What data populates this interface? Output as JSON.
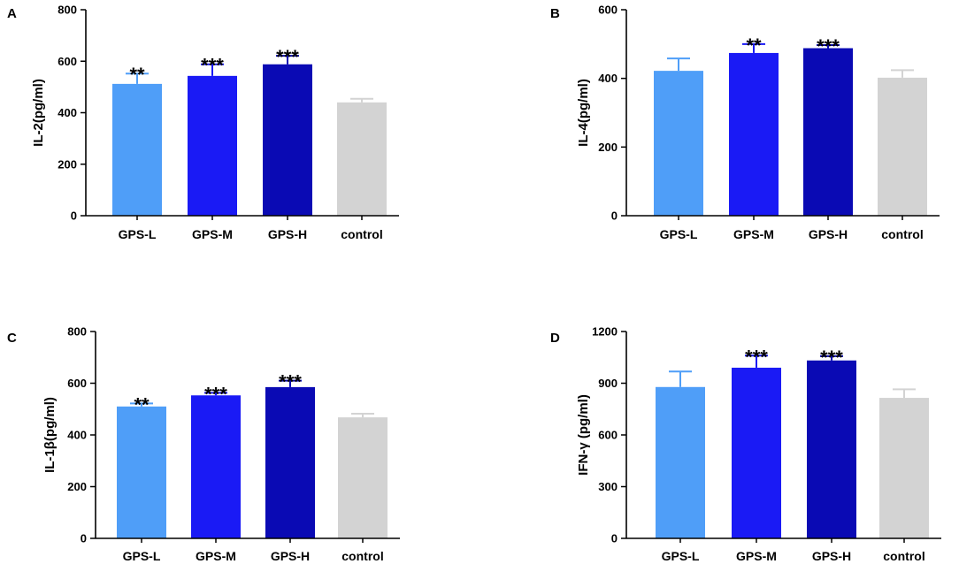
{
  "chart_data": [
    {
      "type": "bar",
      "panel": "A",
      "ylabel": "IL-2(pg/ml)",
      "ylim": [
        0,
        800
      ],
      "yticks": [
        0,
        200,
        400,
        600,
        800
      ],
      "categories": [
        "GPS-L",
        "GPS-M",
        "GPS-H",
        "control"
      ],
      "values": [
        512,
        543,
        588,
        440
      ],
      "errors": [
        40,
        45,
        33,
        14
      ],
      "significance": [
        "**",
        "***",
        "***",
        ""
      ]
    },
    {
      "type": "bar",
      "panel": "B",
      "ylabel": "IL-4(pg/ml)",
      "ylim": [
        0,
        600
      ],
      "yticks": [
        0,
        200,
        400,
        600
      ],
      "categories": [
        "GPS-L",
        "GPS-M",
        "GPS-H",
        "control"
      ],
      "values": [
        422,
        474,
        488,
        402
      ],
      "errors": [
        36,
        26,
        9,
        22
      ],
      "significance": [
        "",
        "**",
        "***",
        ""
      ]
    },
    {
      "type": "bar",
      "panel": "C",
      "ylabel": "IL-1β(pg/ml)",
      "ylim": [
        0,
        800
      ],
      "yticks": [
        0,
        200,
        400,
        600,
        800
      ],
      "categories": [
        "GPS-L",
        "GPS-M",
        "GPS-H",
        "control"
      ],
      "values": [
        510,
        553,
        585,
        468
      ],
      "errors": [
        12,
        10,
        25,
        14
      ],
      "significance": [
        "**",
        "***",
        "***",
        ""
      ]
    },
    {
      "type": "bar",
      "panel": "D",
      "ylabel": "IFN-γ (pg/ml)",
      "ylim": [
        0,
        1200
      ],
      "yticks": [
        0,
        300,
        600,
        900,
        1200
      ],
      "categories": [
        "GPS-L",
        "GPS-M",
        "GPS-H",
        "control"
      ],
      "values": [
        878,
        990,
        1032,
        815
      ],
      "errors": [
        90,
        70,
        25,
        50
      ],
      "significance": [
        "",
        "***",
        "***",
        ""
      ]
    }
  ],
  "colors": [
    "#4f9ef8",
    "#1a1af5",
    "#0a0ab4",
    "#d3d3d3"
  ]
}
